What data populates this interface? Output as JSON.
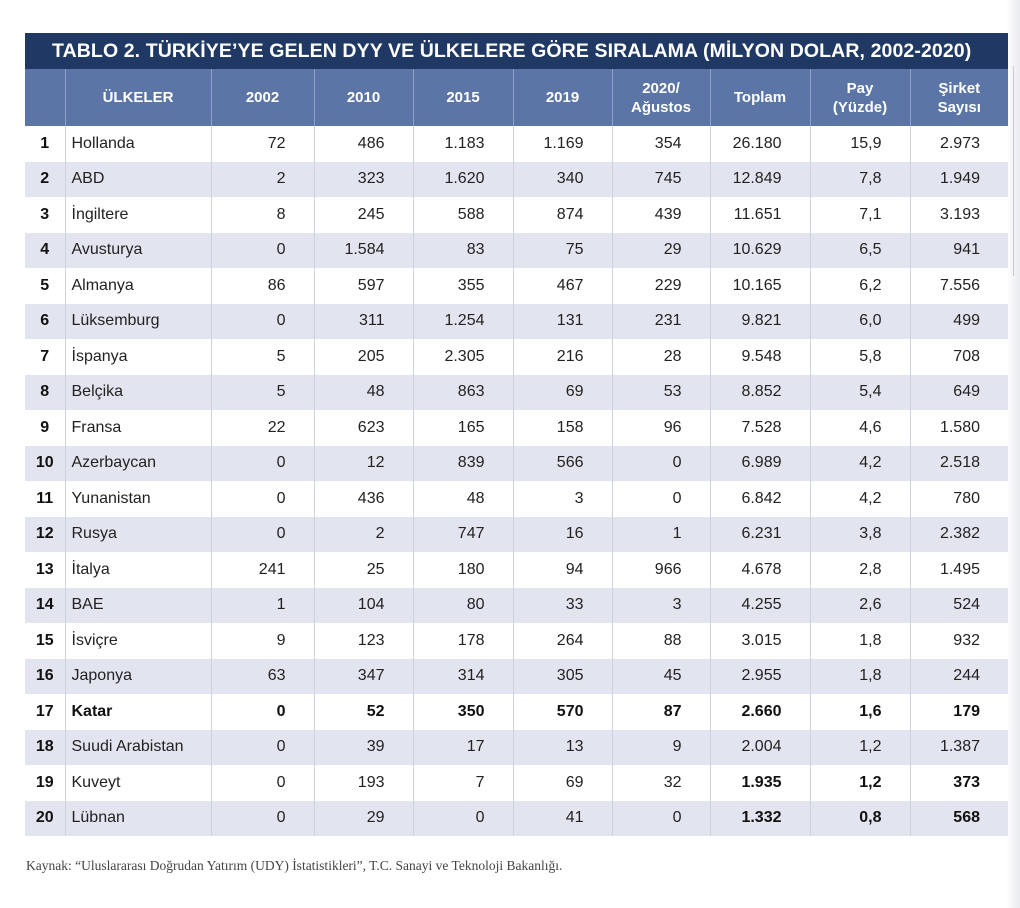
{
  "table": {
    "title": "TABLO 2. TÜRKİYE’YE GELEN DYY VE ÜLKELERE GÖRE SIRALAMA (MİLYON DOLAR, 2002-2020)",
    "headers": {
      "rank": "",
      "country": "ÜLKELER",
      "y2002": "2002",
      "y2010": "2010",
      "y2015": "2015",
      "y2019": "2019",
      "y2020_line1": "2020/",
      "y2020_line2": "Ağustos",
      "total": "Toplam",
      "share_line1": "Pay",
      "share_line2": "(Yüzde)",
      "firms_line1": "Şirket",
      "firms_line2": "Sayısı"
    },
    "rows": [
      {
        "rank": "1",
        "country": "Hollanda",
        "y2002": "72",
        "y2010": "486",
        "y2015": "1.183",
        "y2019": "1.169",
        "y2020": "354",
        "total": "26.180",
        "share": "15,9",
        "firms": "2.973"
      },
      {
        "rank": "2",
        "country": "ABD",
        "y2002": "2",
        "y2010": "323",
        "y2015": "1.620",
        "y2019": "340",
        "y2020": "745",
        "total": "12.849",
        "share": "7,8",
        "firms": "1.949"
      },
      {
        "rank": "3",
        "country": "İngiltere",
        "y2002": "8",
        "y2010": "245",
        "y2015": "588",
        "y2019": "874",
        "y2020": "439",
        "total": "11.651",
        "share": "7,1",
        "firms": "3.193"
      },
      {
        "rank": "4",
        "country": "Avusturya",
        "y2002": "0",
        "y2010": "1.584",
        "y2015": "83",
        "y2019": "75",
        "y2020": "29",
        "total": "10.629",
        "share": "6,5",
        "firms": "941"
      },
      {
        "rank": "5",
        "country": "Almanya",
        "y2002": "86",
        "y2010": "597",
        "y2015": "355",
        "y2019": "467",
        "y2020": "229",
        "total": "10.165",
        "share": "6,2",
        "firms": "7.556"
      },
      {
        "rank": "6",
        "country": "Lüksemburg",
        "y2002": "0",
        "y2010": "311",
        "y2015": "1.254",
        "y2019": "131",
        "y2020": "231",
        "total": "9.821",
        "share": "6,0",
        "firms": "499"
      },
      {
        "rank": "7",
        "country": "İspanya",
        "y2002": "5",
        "y2010": "205",
        "y2015": "2.305",
        "y2019": "216",
        "y2020": "28",
        "total": "9.548",
        "share": "5,8",
        "firms": "708"
      },
      {
        "rank": "8",
        "country": "Belçika",
        "y2002": "5",
        "y2010": "48",
        "y2015": "863",
        "y2019": "69",
        "y2020": "53",
        "total": "8.852",
        "share": "5,4",
        "firms": "649"
      },
      {
        "rank": "9",
        "country": "Fransa",
        "y2002": "22",
        "y2010": "623",
        "y2015": "165",
        "y2019": "158",
        "y2020": "96",
        "total": "7.528",
        "share": "4,6",
        "firms": "1.580"
      },
      {
        "rank": "10",
        "country": "Azerbaycan",
        "y2002": "0",
        "y2010": "12",
        "y2015": "839",
        "y2019": "566",
        "y2020": "0",
        "total": "6.989",
        "share": "4,2",
        "firms": "2.518"
      },
      {
        "rank": "11",
        "country": "Yunanistan",
        "y2002": "0",
        "y2010": "436",
        "y2015": "48",
        "y2019": "3",
        "y2020": "0",
        "total": "6.842",
        "share": "4,2",
        "firms": "780"
      },
      {
        "rank": "12",
        "country": "Rusya",
        "y2002": "0",
        "y2010": "2",
        "y2015": "747",
        "y2019": "16",
        "y2020": "1",
        "total": "6.231",
        "share": "3,8",
        "firms": "2.382"
      },
      {
        "rank": "13",
        "country": "İtalya",
        "y2002": "241",
        "y2010": "25",
        "y2015": "180",
        "y2019": "94",
        "y2020": "966",
        "total": "4.678",
        "share": "2,8",
        "firms": "1.495"
      },
      {
        "rank": "14",
        "country": "BAE",
        "y2002": "1",
        "y2010": "104",
        "y2015": "80",
        "y2019": "33",
        "y2020": "3",
        "total": "4.255",
        "share": "2,6",
        "firms": "524"
      },
      {
        "rank": "15",
        "country": "İsviçre",
        "y2002": "9",
        "y2010": "123",
        "y2015": "178",
        "y2019": "264",
        "y2020": "88",
        "total": "3.015",
        "share": "1,8",
        "firms": "932"
      },
      {
        "rank": "16",
        "country": "Japonya",
        "y2002": "63",
        "y2010": "347",
        "y2015": "314",
        "y2019": "305",
        "y2020": "45",
        "total": "2.955",
        "share": "1,8",
        "firms": "244"
      },
      {
        "rank": "17",
        "country": "Katar",
        "y2002": "0",
        "y2010": "52",
        "y2015": "350",
        "y2019": "570",
        "y2020": "87",
        "total": "2.660",
        "share": "1,6",
        "firms": "179"
      },
      {
        "rank": "18",
        "country": "Suudi Arabistan",
        "y2002": "0",
        "y2010": "39",
        "y2015": "17",
        "y2019": "13",
        "y2020": "9",
        "total": "2.004",
        "share": "1,2",
        "firms": "1.387"
      },
      {
        "rank": "19",
        "country": "Kuveyt",
        "y2002": "0",
        "y2010": "193",
        "y2015": "7",
        "y2019": "69",
        "y2020": "32",
        "total": "1.935",
        "share": "1,2",
        "firms": "373"
      },
      {
        "rank": "20",
        "country": "Lübnan",
        "y2002": "0",
        "y2010": "29",
        "y2015": "0",
        "y2019": "41",
        "y2020": "0",
        "total": "1.332",
        "share": "0,8",
        "firms": "568"
      }
    ]
  },
  "source": "Kaynak: “Uluslararası Doğrudan Yatırım (UDY) İstatistikleri”, T.C. Sanayi ve Teknoloji Bakanlığı.",
  "colors": {
    "title_bg": "#203864",
    "header_bg": "#5b76a6",
    "stripe": "#e2e5ef"
  }
}
